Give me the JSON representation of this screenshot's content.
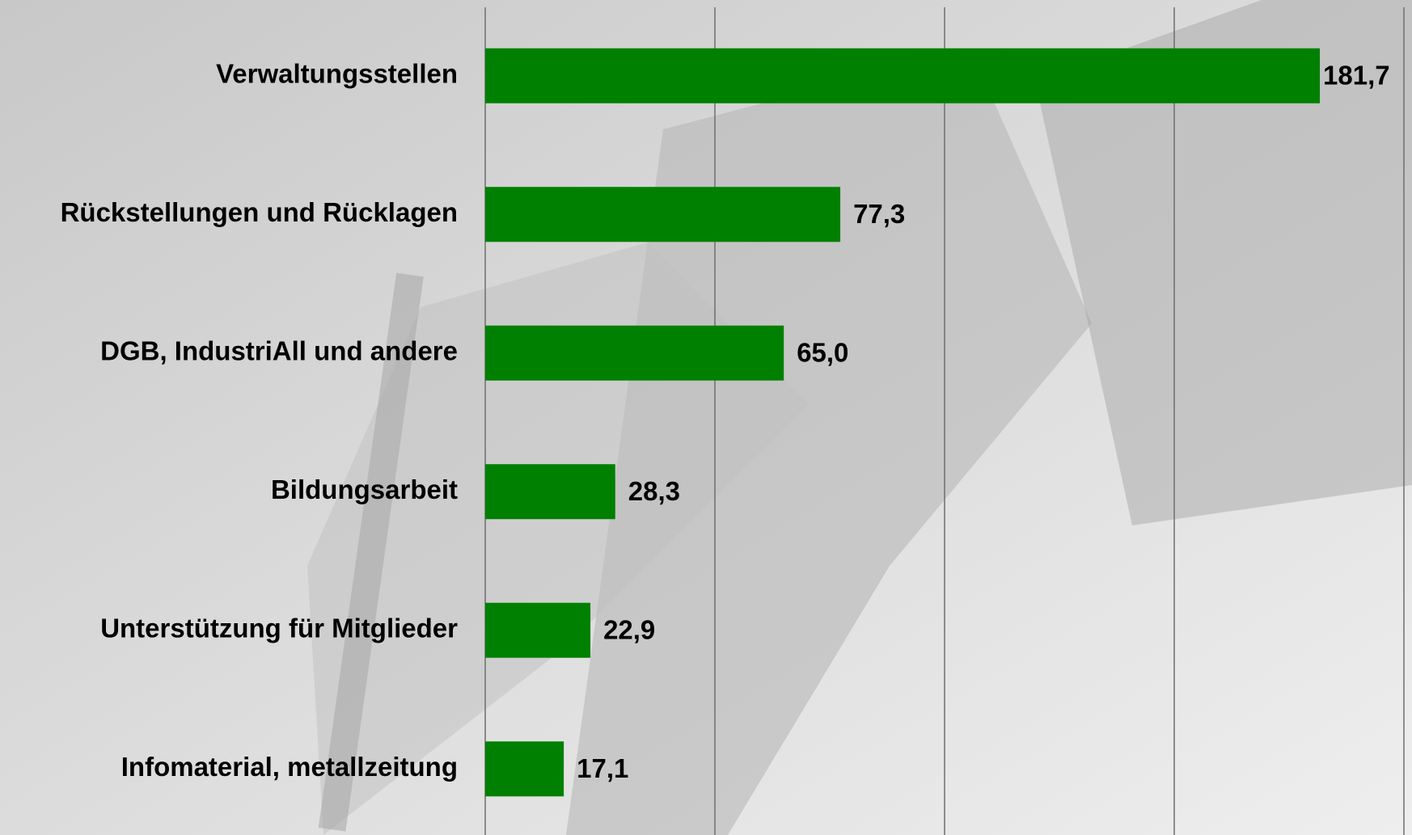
{
  "chart_data": {
    "type": "bar",
    "orientation": "horizontal",
    "categories": [
      "Verwaltungsstellen",
      "Rückstellungen und Rücklagen",
      "DGB, IndustriAll und andere",
      "Bildungsarbeit",
      "Unterstützung für Mitglieder",
      "Infomaterial, metallzeitung"
    ],
    "values": [
      181.7,
      77.3,
      65.0,
      28.3,
      22.9,
      17.1
    ],
    "value_labels": [
      "181,7",
      "77,3",
      "65,0",
      "28,3",
      "22,9",
      "17,1"
    ],
    "color": "#008000",
    "xlim": [
      0,
      200
    ],
    "xticks": [
      0,
      50,
      100,
      150,
      200
    ],
    "grid": true
  }
}
